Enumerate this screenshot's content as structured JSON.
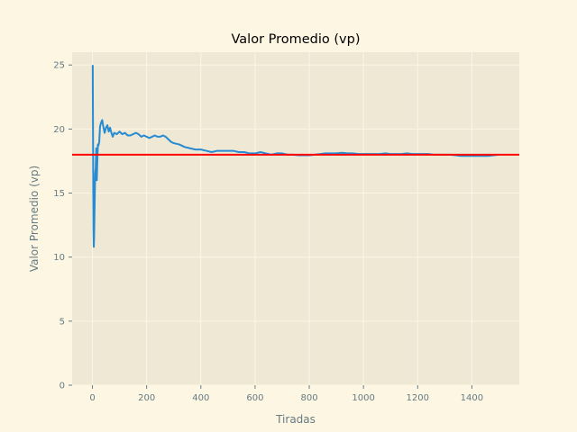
{
  "chart_data": {
    "type": "line",
    "title": "Valor Promedio (vp)",
    "xlabel": "Tiradas",
    "ylabel": "Valor Promedio (vp)",
    "xlim": [
      -75,
      1575
    ],
    "ylim": [
      0,
      26
    ],
    "x_ticks": [
      0,
      200,
      400,
      600,
      800,
      1000,
      1200,
      1400
    ],
    "y_ticks": [
      0,
      5,
      10,
      15,
      20,
      25
    ],
    "grid": true,
    "legend": "none",
    "colors": {
      "background": "#fdf6e3",
      "plot_area": "#eee8d5",
      "grid": "#fdf6e3",
      "series": "#268bd2",
      "reference": "#ff0000",
      "tick_text": "#657b83"
    },
    "reference_line": {
      "y": 18
    },
    "series": [
      {
        "x": [
          1,
          2,
          3,
          4,
          5,
          6,
          8,
          10,
          12,
          14,
          16,
          18,
          20,
          22,
          25,
          28,
          32,
          36,
          40,
          45,
          50,
          55,
          60,
          65,
          70,
          75,
          80,
          90,
          100,
          110,
          120,
          130,
          140,
          150,
          160,
          170,
          180,
          190,
          200,
          210,
          220,
          230,
          240,
          250,
          260,
          270,
          280,
          290,
          300,
          320,
          340,
          360,
          380,
          400,
          420,
          440,
          460,
          480,
          500,
          520,
          540,
          560,
          580,
          600,
          620,
          640,
          660,
          680,
          700,
          720,
          740,
          760,
          780,
          800,
          820,
          840,
          860,
          880,
          900,
          920,
          940,
          960,
          980,
          1000,
          1020,
          1040,
          1060,
          1080,
          1100,
          1120,
          1140,
          1160,
          1180,
          1200,
          1220,
          1240,
          1260,
          1280,
          1300,
          1320,
          1340,
          1360,
          1380,
          1400,
          1420,
          1440,
          1460,
          1480,
          1500
        ],
        "y": [
          25.0,
          20.0,
          15.0,
          12.0,
          10.8,
          11.5,
          14.0,
          16.5,
          17.0,
          18.5,
          16.0,
          17.5,
          18.8,
          18.7,
          19.0,
          20.2,
          20.5,
          20.7,
          20.2,
          19.7,
          20.1,
          20.3,
          19.8,
          20.1,
          19.7,
          19.4,
          19.7,
          19.6,
          19.8,
          19.6,
          19.7,
          19.5,
          19.5,
          19.6,
          19.7,
          19.6,
          19.4,
          19.5,
          19.4,
          19.3,
          19.4,
          19.5,
          19.4,
          19.4,
          19.5,
          19.4,
          19.2,
          19.0,
          18.9,
          18.8,
          18.6,
          18.5,
          18.4,
          18.4,
          18.3,
          18.2,
          18.3,
          18.3,
          18.3,
          18.3,
          18.2,
          18.2,
          18.1,
          18.1,
          18.2,
          18.1,
          18.0,
          18.1,
          18.1,
          18.0,
          18.0,
          17.95,
          17.95,
          17.95,
          18.0,
          18.05,
          18.1,
          18.1,
          18.1,
          18.15,
          18.1,
          18.1,
          18.05,
          18.05,
          18.05,
          18.05,
          18.05,
          18.1,
          18.05,
          18.05,
          18.05,
          18.1,
          18.05,
          18.05,
          18.05,
          18.05,
          18.0,
          18.0,
          18.0,
          18.0,
          17.95,
          17.9,
          17.9,
          17.9,
          17.9,
          17.9,
          17.9,
          17.95,
          18.0
        ]
      }
    ]
  }
}
